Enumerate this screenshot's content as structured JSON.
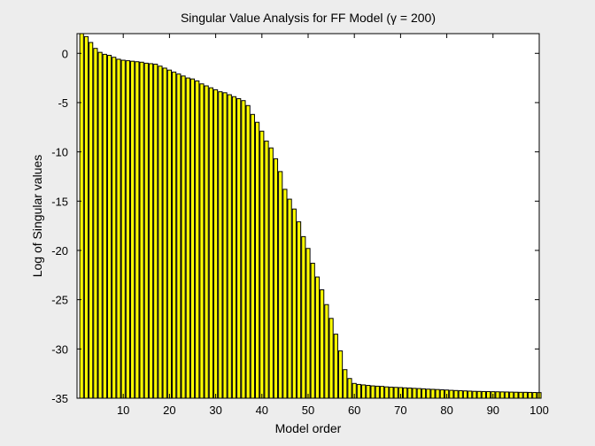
{
  "chart_data": {
    "type": "bar",
    "title": "Singular Value Analysis for FF Model (γ = 200)",
    "xlabel": "Model order",
    "ylabel": "Log of Singular values",
    "xlim": [
      0,
      100
    ],
    "ylim": [
      -35,
      2
    ],
    "xticks": [
      10,
      20,
      30,
      40,
      50,
      60,
      70,
      80,
      90,
      100
    ],
    "xtick_labels": [
      "10",
      "20",
      "30",
      "40",
      "50",
      "60",
      "70",
      "80",
      "90",
      "100"
    ],
    "yticks": [
      0,
      -5,
      -10,
      -15,
      -20,
      -25,
      -30,
      -35
    ],
    "ytick_labels": [
      "0",
      "-5",
      "-10",
      "-15",
      "-20",
      "-25",
      "-30",
      "-35"
    ],
    "grid": false,
    "bar_color": "#ffff00",
    "edge_color": "#000000",
    "x": [
      1,
      2,
      3,
      4,
      5,
      6,
      7,
      8,
      9,
      10,
      11,
      12,
      13,
      14,
      15,
      16,
      17,
      18,
      19,
      20,
      21,
      22,
      23,
      24,
      25,
      26,
      27,
      28,
      29,
      30,
      31,
      32,
      33,
      34,
      35,
      36,
      37,
      38,
      39,
      40,
      41,
      42,
      43,
      44,
      45,
      46,
      47,
      48,
      49,
      50,
      51,
      52,
      53,
      54,
      55,
      56,
      57,
      58,
      59,
      60,
      61,
      62,
      63,
      64,
      65,
      66,
      67,
      68,
      69,
      70,
      71,
      72,
      73,
      74,
      75,
      76,
      77,
      78,
      79,
      80,
      81,
      82,
      83,
      84,
      85,
      86,
      87,
      88,
      89,
      90,
      91,
      92,
      93,
      94,
      95,
      96,
      97,
      98,
      99,
      100
    ],
    "values": [
      2.1,
      1.7,
      1.1,
      0.5,
      0.1,
      -0.1,
      -0.2,
      -0.4,
      -0.6,
      -0.7,
      -0.75,
      -0.8,
      -0.85,
      -0.9,
      -1.0,
      -1.05,
      -1.1,
      -1.3,
      -1.5,
      -1.7,
      -1.9,
      -2.1,
      -2.3,
      -2.5,
      -2.6,
      -2.8,
      -3.1,
      -3.3,
      -3.5,
      -3.7,
      -3.9,
      -4.0,
      -4.2,
      -4.4,
      -4.6,
      -4.8,
      -5.3,
      -6.2,
      -7.0,
      -7.9,
      -8.9,
      -9.6,
      -10.7,
      -12.0,
      -13.8,
      -14.8,
      -15.8,
      -17.1,
      -18.6,
      -19.8,
      -21.3,
      -22.7,
      -24.0,
      -25.5,
      -26.9,
      -28.5,
      -30.2,
      -32.1,
      -33.0,
      -33.5,
      -33.6,
      -33.65,
      -33.7,
      -33.75,
      -33.78,
      -33.8,
      -33.85,
      -33.88,
      -33.9,
      -33.92,
      -33.95,
      -33.97,
      -34.0,
      -34.02,
      -34.05,
      -34.08,
      -34.1,
      -34.12,
      -34.15,
      -34.17,
      -34.2,
      -34.22,
      -34.24,
      -34.26,
      -34.28,
      -34.3,
      -34.31,
      -34.32,
      -34.33,
      -34.34,
      -34.35,
      -34.36,
      -34.37,
      -34.38,
      -34.39,
      -34.4,
      -34.4,
      -34.41,
      -34.42,
      -34.43
    ]
  }
}
